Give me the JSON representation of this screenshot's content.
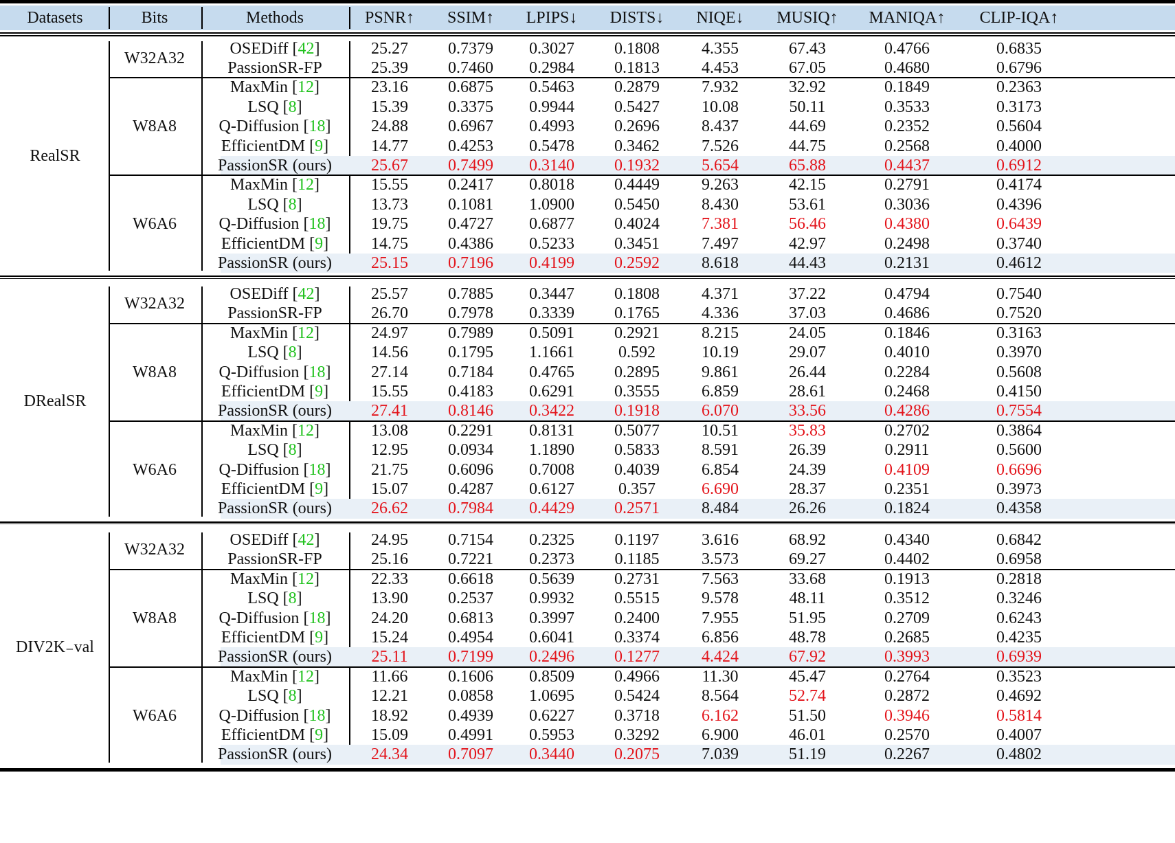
{
  "table": {
    "columns": [
      "Datasets",
      "Bits",
      "Methods",
      "PSNR↑",
      "SSIM↑",
      "LPIPS↓",
      "DISTS↓",
      "NIQE↓",
      "MUSIQ↑",
      "MANIQA↑",
      "CLIP-IQA↑"
    ],
    "colors": {
      "header_bg": "#c6dbee",
      "ours_bg": "#e9f0f7",
      "best": "#e3141b",
      "ref": "#22c21f"
    },
    "datasets": [
      {
        "name": "RealSR",
        "groups": [
          {
            "bits": "W32A32",
            "rows": [
              {
                "method": "OSEDiff",
                "ref": "42",
                "values": [
                  "25.27",
                  "0.7379",
                  "0.3027",
                  "0.1808",
                  "4.355",
                  "67.43",
                  "0.4766",
                  "0.6835"
                ],
                "red": []
              },
              {
                "method": "PassionSR-FP",
                "ref": "",
                "values": [
                  "25.39",
                  "0.7460",
                  "0.2984",
                  "0.1813",
                  "4.453",
                  "67.05",
                  "0.4680",
                  "0.6796"
                ],
                "red": []
              }
            ]
          },
          {
            "bits": "W8A8",
            "rows": [
              {
                "method": "MaxMin",
                "ref": "12",
                "values": [
                  "23.16",
                  "0.6875",
                  "0.5463",
                  "0.2879",
                  "7.932",
                  "32.92",
                  "0.1849",
                  "0.2363"
                ],
                "red": []
              },
              {
                "method": "LSQ",
                "ref": "8",
                "values": [
                  "15.39",
                  "0.3375",
                  "0.9944",
                  "0.5427",
                  "10.08",
                  "50.11",
                  "0.3533",
                  "0.3173"
                ],
                "red": []
              },
              {
                "method": "Q-Diffusion",
                "ref": "18",
                "values": [
                  "24.88",
                  "0.6967",
                  "0.4993",
                  "0.2696",
                  "8.437",
                  "44.69",
                  "0.2352",
                  "0.5604"
                ],
                "red": []
              },
              {
                "method": "EfficientDM",
                "ref": "9",
                "values": [
                  "14.77",
                  "0.4253",
                  "0.5478",
                  "0.3462",
                  "7.526",
                  "44.75",
                  "0.2568",
                  "0.4000"
                ],
                "red": []
              },
              {
                "method": "PassionSR (ours)",
                "ref": "",
                "ours": true,
                "values": [
                  "25.67",
                  "0.7499",
                  "0.3140",
                  "0.1932",
                  "5.654",
                  "65.88",
                  "0.4437",
                  "0.6912"
                ],
                "red": [
                  0,
                  1,
                  2,
                  3,
                  4,
                  5,
                  6,
                  7
                ]
              }
            ]
          },
          {
            "bits": "W6A6",
            "rows": [
              {
                "method": "MaxMin",
                "ref": "12",
                "values": [
                  "15.55",
                  "0.2417",
                  "0.8018",
                  "0.4449",
                  "9.263",
                  "42.15",
                  "0.2791",
                  "0.4174"
                ],
                "red": []
              },
              {
                "method": "LSQ",
                "ref": "8",
                "values": [
                  "13.73",
                  "0.1081",
                  "1.0900",
                  "0.5450",
                  "8.430",
                  "53.61",
                  "0.3036",
                  "0.4396"
                ],
                "red": []
              },
              {
                "method": "Q-Diffusion",
                "ref": "18",
                "values": [
                  "19.75",
                  "0.4727",
                  "0.6877",
                  "0.4024",
                  "7.381",
                  "56.46",
                  "0.4380",
                  "0.6439"
                ],
                "red": [
                  4,
                  5,
                  6,
                  7
                ]
              },
              {
                "method": "EfficientDM",
                "ref": "9",
                "values": [
                  "14.75",
                  "0.4386",
                  "0.5233",
                  "0.3451",
                  "7.497",
                  "42.97",
                  "0.2498",
                  "0.3740"
                ],
                "red": []
              },
              {
                "method": "PassionSR (ours)",
                "ref": "",
                "ours": true,
                "values": [
                  "25.15",
                  "0.7196",
                  "0.4199",
                  "0.2592",
                  "8.618",
                  "44.43",
                  "0.2131",
                  "0.4612"
                ],
                "red": [
                  0,
                  1,
                  2,
                  3
                ]
              }
            ]
          }
        ]
      },
      {
        "name": "DRealSR",
        "groups": [
          {
            "bits": "W32A32",
            "rows": [
              {
                "method": "OSEDiff",
                "ref": "42",
                "values": [
                  "25.57",
                  "0.7885",
                  "0.3447",
                  "0.1808",
                  "4.371",
                  "37.22",
                  "0.4794",
                  "0.7540"
                ],
                "red": []
              },
              {
                "method": "PassionSR-FP",
                "ref": "",
                "values": [
                  "26.70",
                  "0.7978",
                  "0.3339",
                  "0.1765",
                  "4.336",
                  "37.03",
                  "0.4686",
                  "0.7520"
                ],
                "red": []
              }
            ]
          },
          {
            "bits": "W8A8",
            "rows": [
              {
                "method": "MaxMin",
                "ref": "12",
                "values": [
                  "24.97",
                  "0.7989",
                  "0.5091",
                  "0.2921",
                  "8.215",
                  "24.05",
                  "0.1846",
                  "0.3163"
                ],
                "red": []
              },
              {
                "method": "LSQ",
                "ref": "8",
                "values": [
                  "14.56",
                  "0.1795",
                  "1.1661",
                  "0.592",
                  "10.19",
                  "29.07",
                  "0.4010",
                  "0.3970"
                ],
                "red": []
              },
              {
                "method": "Q-Diffusion",
                "ref": "18",
                "values": [
                  "27.14",
                  "0.7184",
                  "0.4765",
                  "0.2895",
                  "9.861",
                  "26.44",
                  "0.2284",
                  "0.5608"
                ],
                "red": []
              },
              {
                "method": "EfficientDM",
                "ref": "9",
                "values": [
                  "15.55",
                  "0.4183",
                  "0.6291",
                  "0.3555",
                  "6.859",
                  "28.61",
                  "0.2468",
                  "0.4150"
                ],
                "red": []
              },
              {
                "method": "PassionSR (ours)",
                "ref": "",
                "ours": true,
                "values": [
                  "27.41",
                  "0.8146",
                  "0.3422",
                  "0.1918",
                  "6.070",
                  "33.56",
                  "0.4286",
                  "0.7554"
                ],
                "red": [
                  0,
                  1,
                  2,
                  3,
                  4,
                  5,
                  6,
                  7
                ]
              }
            ]
          },
          {
            "bits": "W6A6",
            "rows": [
              {
                "method": "MaxMin",
                "ref": "12",
                "values": [
                  "13.08",
                  "0.2291",
                  "0.8131",
                  "0.5077",
                  "10.51",
                  "35.83",
                  "0.2702",
                  "0.3864"
                ],
                "red": [
                  5
                ]
              },
              {
                "method": "LSQ",
                "ref": "8",
                "values": [
                  "12.95",
                  "0.0934",
                  "1.1890",
                  "0.5833",
                  "8.591",
                  "26.39",
                  "0.2911",
                  "0.5600"
                ],
                "red": []
              },
              {
                "method": "Q-Diffusion",
                "ref": "18",
                "values": [
                  "21.75",
                  "0.6096",
                  "0.7008",
                  "0.4039",
                  "6.854",
                  "24.39",
                  "0.4109",
                  "0.6696"
                ],
                "red": [
                  6,
                  7
                ]
              },
              {
                "method": "EfficientDM",
                "ref": "9",
                "values": [
                  "15.07",
                  "0.4287",
                  "0.6127",
                  "0.357",
                  "6.690",
                  "28.37",
                  "0.2351",
                  "0.3973"
                ],
                "red": [
                  4
                ]
              },
              {
                "method": "PassionSR (ours)",
                "ref": "",
                "ours": true,
                "values": [
                  "26.62",
                  "0.7984",
                  "0.4429",
                  "0.2571",
                  "8.484",
                  "26.26",
                  "0.1824",
                  "0.4358"
                ],
                "red": [
                  0,
                  1,
                  2,
                  3
                ]
              }
            ]
          }
        ]
      },
      {
        "name": "DIV2K_val",
        "groups": [
          {
            "bits": "W32A32",
            "rows": [
              {
                "method": "OSEDiff",
                "ref": "42",
                "values": [
                  "24.95",
                  "0.7154",
                  "0.2325",
                  "0.1197",
                  "3.616",
                  "68.92",
                  "0.4340",
                  "0.6842"
                ],
                "red": []
              },
              {
                "method": "PassionSR-FP",
                "ref": "",
                "values": [
                  "25.16",
                  "0.7221",
                  "0.2373",
                  "0.1185",
                  "3.573",
                  "69.27",
                  "0.4402",
                  "0.6958"
                ],
                "red": []
              }
            ]
          },
          {
            "bits": "W8A8",
            "rows": [
              {
                "method": "MaxMin",
                "ref": "12",
                "values": [
                  "22.33",
                  "0.6618",
                  "0.5639",
                  "0.2731",
                  "7.563",
                  "33.68",
                  "0.1913",
                  "0.2818"
                ],
                "red": []
              },
              {
                "method": "LSQ",
                "ref": "8",
                "values": [
                  "13.90",
                  "0.2537",
                  "0.9932",
                  "0.5515",
                  "9.578",
                  "48.11",
                  "0.3512",
                  "0.3246"
                ],
                "red": []
              },
              {
                "method": "Q-Diffusion",
                "ref": "18",
                "values": [
                  "24.20",
                  "0.6813",
                  "0.3997",
                  "0.2400",
                  "7.955",
                  "51.95",
                  "0.2709",
                  "0.6243"
                ],
                "red": []
              },
              {
                "method": "EfficientDM",
                "ref": "9",
                "values": [
                  "15.24",
                  "0.4954",
                  "0.6041",
                  "0.3374",
                  "6.856",
                  "48.78",
                  "0.2685",
                  "0.4235"
                ],
                "red": []
              },
              {
                "method": "PassionSR (ours)",
                "ref": "",
                "ours": true,
                "values": [
                  "25.11",
                  "0.7199",
                  "0.2496",
                  "0.1277",
                  "4.424",
                  "67.92",
                  "0.3993",
                  "0.6939"
                ],
                "red": [
                  0,
                  1,
                  2,
                  3,
                  4,
                  5,
                  6,
                  7
                ]
              }
            ]
          },
          {
            "bits": "W6A6",
            "rows": [
              {
                "method": "MaxMin",
                "ref": "12",
                "values": [
                  "11.66",
                  "0.1606",
                  "0.8509",
                  "0.4966",
                  "11.30",
                  "45.47",
                  "0.2764",
                  "0.3523"
                ],
                "red": []
              },
              {
                "method": "LSQ",
                "ref": "8",
                "values": [
                  "12.21",
                  "0.0858",
                  "1.0695",
                  "0.5424",
                  "8.564",
                  "52.74",
                  "0.2872",
                  "0.4692"
                ],
                "red": [
                  5
                ]
              },
              {
                "method": "Q-Diffusion",
                "ref": "18",
                "values": [
                  "18.92",
                  "0.4939",
                  "0.6227",
                  "0.3718",
                  "6.162",
                  "51.50",
                  "0.3946",
                  "0.5814"
                ],
                "red": [
                  4,
                  6,
                  7
                ]
              },
              {
                "method": "EfficientDM",
                "ref": "9",
                "values": [
                  "15.09",
                  "0.4991",
                  "0.5953",
                  "0.3292",
                  "6.900",
                  "46.01",
                  "0.2570",
                  "0.4007"
                ],
                "red": []
              },
              {
                "method": "PassionSR (ours)",
                "ref": "",
                "ours": true,
                "values": [
                  "24.34",
                  "0.7097",
                  "0.3440",
                  "0.2075",
                  "7.039",
                  "51.19",
                  "0.2267",
                  "0.4802"
                ],
                "red": [
                  0,
                  1,
                  2,
                  3
                ]
              }
            ]
          }
        ]
      }
    ]
  }
}
